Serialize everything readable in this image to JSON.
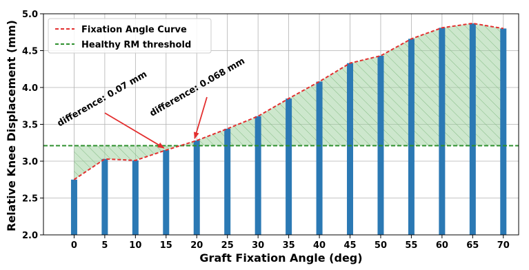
{
  "chart_data": {
    "type": "bar",
    "xlabel": "Graft Fixation Angle (deg)",
    "ylabel": "Relative Knee Displacement (mm)",
    "ylim": [
      2.0,
      5.0
    ],
    "xlim": [
      -5,
      72.5
    ],
    "yticks": [
      "2.0",
      "2.5",
      "3.0",
      "3.5",
      "4.0",
      "4.5",
      "5.0"
    ],
    "xticks": [
      "0",
      "5",
      "10",
      "15",
      "20",
      "25",
      "30",
      "35",
      "40",
      "45",
      "50",
      "55",
      "60",
      "65",
      "70"
    ],
    "grid": true,
    "legend_position": "top-left",
    "x": [
      0,
      5,
      10,
      15,
      20,
      25,
      30,
      35,
      40,
      45,
      50,
      55,
      60,
      65,
      70
    ],
    "series": [
      {
        "name": "Fixation Angle Curve",
        "kind": "bar+line",
        "values": [
          2.75,
          3.03,
          3.01,
          3.15,
          3.28,
          3.44,
          3.61,
          3.85,
          4.08,
          4.33,
          4.43,
          4.66,
          4.81,
          4.87,
          4.8
        ],
        "bar_color": "#2b79b4",
        "line_color": "#e32f2f"
      },
      {
        "name": "Healthy RM threshold",
        "kind": "hline",
        "value": 3.21,
        "color": "#2c8f2c"
      }
    ],
    "annotations": [
      {
        "text": "difference: 0.07 mm",
        "target_x": 15,
        "target_y": 3.15
      },
      {
        "text": "difference: 0.068 mm",
        "target_x": 20,
        "target_y": 3.28
      }
    ],
    "fill_color": "#9ccf9c"
  }
}
